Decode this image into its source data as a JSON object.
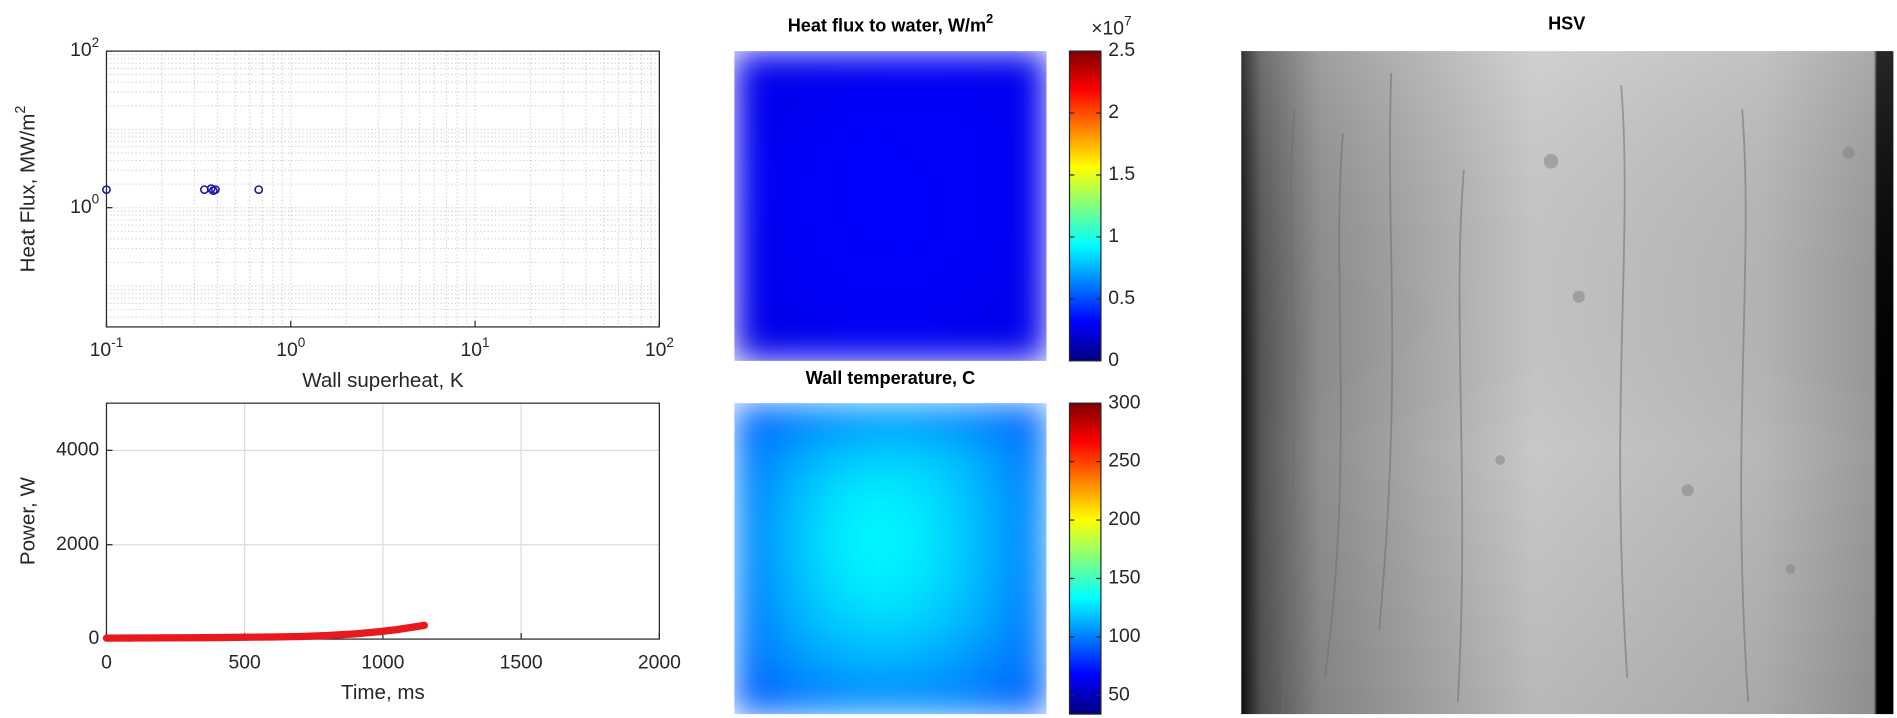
{
  "chart_data": [
    {
      "type": "scatter",
      "xlabel": "Wall superheat, K",
      "ylabel": "Heat Flux, MW/m^2",
      "log_x": true,
      "log_y": true,
      "grid": true,
      "minor_grid": true,
      "xlim": [
        0.1,
        100
      ],
      "ylim": [
        0.03,
        100
      ],
      "xticks": [
        {
          "value": 0.1,
          "label": "10^-1"
        },
        {
          "value": 1,
          "label": "10^0"
        },
        {
          "value": 10,
          "label": "10^1"
        },
        {
          "value": 100,
          "label": "10^2"
        }
      ],
      "yticks": [
        {
          "value": 1,
          "label": "10^0"
        },
        {
          "value": 100,
          "label": "10^2"
        }
      ],
      "x": [
        0.1,
        0.34,
        0.37,
        0.38,
        0.39,
        0.67
      ],
      "values": [
        1.7,
        1.7,
        1.75,
        1.65,
        1.7,
        1.7
      ],
      "color": "#1a1aa6"
    },
    {
      "type": "line",
      "xlabel": "Time, ms",
      "ylabel": "Power, W",
      "grid": true,
      "xlim": [
        0,
        2000
      ],
      "ylim": [
        0,
        5000
      ],
      "xticks": [
        0,
        500,
        1000,
        1500,
        2000
      ],
      "yticks": [
        0,
        2000,
        4000
      ],
      "x": [
        0,
        100,
        200,
        300,
        400,
        500,
        600,
        700,
        800,
        900,
        1000,
        1050,
        1100,
        1150
      ],
      "values": [
        20,
        22,
        25,
        28,
        32,
        38,
        45,
        55,
        75,
        110,
        165,
        200,
        245,
        290
      ],
      "color": "#e8191c"
    },
    {
      "type": "heatmap",
      "title": "Heat flux to water, W/m^2",
      "colormap": "jet",
      "zlim": [
        0,
        2.5
      ],
      "zticks": [
        0,
        0.5,
        1,
        1.5,
        2,
        2.5
      ],
      "colorbar_exponent": "×10^7",
      "values": [
        [
          0.26,
          0.27,
          0.28,
          0.29,
          0.28,
          0.27
        ],
        [
          0.27,
          0.29,
          0.31,
          0.3,
          0.3,
          0.28
        ],
        [
          0.28,
          0.3,
          0.32,
          0.31,
          0.3,
          0.28
        ],
        [
          0.27,
          0.3,
          0.31,
          0.32,
          0.3,
          0.28
        ],
        [
          0.27,
          0.29,
          0.3,
          0.3,
          0.29,
          0.27
        ],
        [
          0.25,
          0.27,
          0.28,
          0.28,
          0.27,
          0.26
        ]
      ]
    },
    {
      "type": "heatmap",
      "title": "Wall temperature, C",
      "colormap": "jet",
      "zlim": [
        34,
        300
      ],
      "zticks": [
        50,
        100,
        150,
        200,
        250,
        300
      ],
      "values": [
        [
          95,
          100,
          105,
          108,
          108,
          105,
          100,
          95
        ],
        [
          100,
          110,
          118,
          122,
          122,
          118,
          110,
          100
        ],
        [
          102,
          115,
          125,
          130,
          128,
          122,
          112,
          102
        ],
        [
          103,
          116,
          127,
          132,
          130,
          123,
          113,
          103
        ],
        [
          102,
          115,
          125,
          130,
          128,
          122,
          112,
          102
        ],
        [
          100,
          112,
          120,
          124,
          123,
          118,
          110,
          100
        ],
        [
          98,
          106,
          112,
          115,
          114,
          110,
          104,
          98
        ],
        [
          92,
          98,
          102,
          104,
          104,
          102,
          98,
          92
        ]
      ]
    },
    {
      "type": "image",
      "title": "HSV"
    }
  ]
}
